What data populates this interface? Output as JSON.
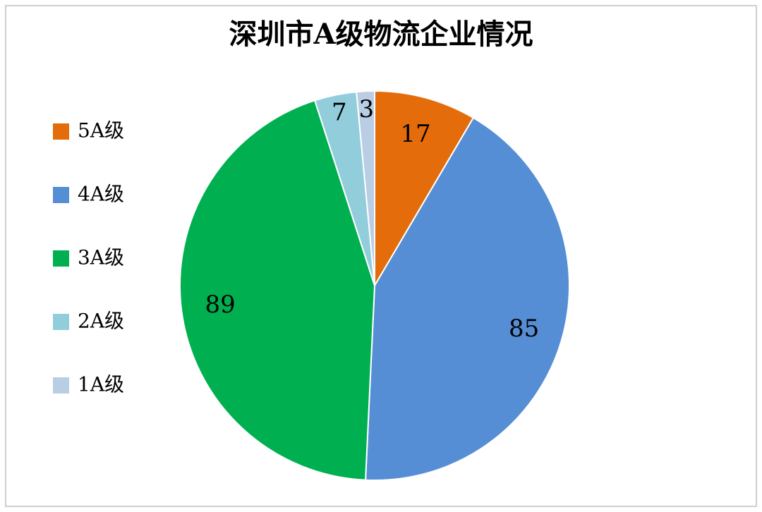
{
  "chart_data": {
    "type": "pie",
    "title": "深圳市A级物流企业情况",
    "categories": [
      "5A级",
      "4A级",
      "3A级",
      "2A级",
      "1A级"
    ],
    "values": [
      17,
      85,
      89,
      7,
      3
    ],
    "colors": [
      "#e46c0a",
      "#558ed5",
      "#00b050",
      "#92cddc",
      "#b9cde5"
    ],
    "legend": "left"
  }
}
